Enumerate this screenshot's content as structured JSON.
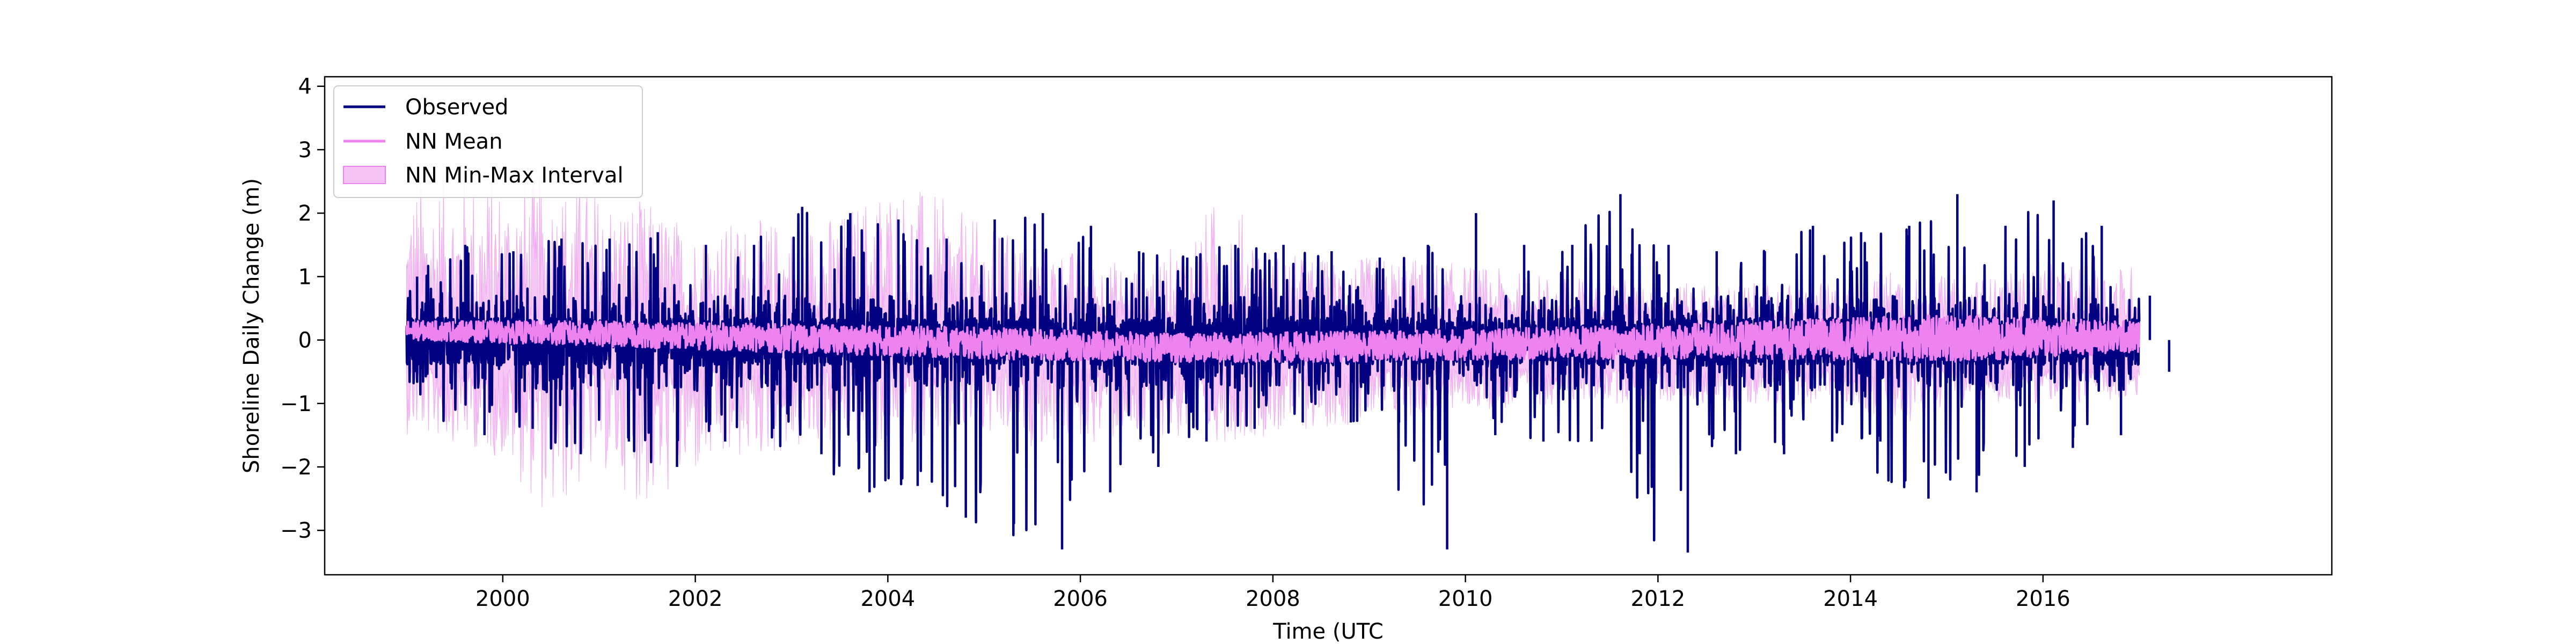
{
  "chart_data": {
    "type": "line",
    "title": "",
    "xlabel": "Time (UTC",
    "ylabel": "Shoreline Daily Change (m)",
    "xlim": [
      1998.15,
      2019.0
    ],
    "ylim": [
      -3.7,
      4.15
    ],
    "x_ticks": [
      2000,
      2002,
      2004,
      2006,
      2008,
      2010,
      2012,
      2014,
      2016
    ],
    "x_tick_labels": [
      "2000",
      "2002",
      "2004",
      "2006",
      "2008",
      "2010",
      "2012",
      "2014",
      "2016"
    ],
    "y_ticks": [
      -3,
      -2,
      -1,
      0,
      1,
      2,
      3,
      4
    ],
    "y_tick_labels": [
      "−3",
      "−2",
      "−1",
      "0",
      "1",
      "2",
      "3",
      "4"
    ],
    "grid": false,
    "legend_position": "upper-left",
    "series": [
      {
        "name": "Observed",
        "kind": "line",
        "color": "#000080",
        "x": [
          1999.0,
          1999.5,
          2000.0,
          2000.5,
          2001.0,
          2001.5,
          2002.0,
          2002.5,
          2003.0,
          2003.5,
          2004.0,
          2004.5,
          2005.0,
          2005.5,
          2006.0,
          2006.5,
          2007.0,
          2007.5,
          2008.0,
          2008.5,
          2009.0,
          2009.5,
          2010.0,
          2010.5,
          2011.0,
          2011.5,
          2012.0,
          2012.5,
          2013.0,
          2013.5,
          2014.0,
          2014.5,
          2015.0,
          2015.5,
          2016.0,
          2016.5,
          2017.0
        ],
        "y_max": [
          1.0,
          1.5,
          1.4,
          1.6,
          1.6,
          1.7,
          1.5,
          1.5,
          2.1,
          2.0,
          1.9,
          1.6,
          1.9,
          2.0,
          1.8,
          1.4,
          1.3,
          1.5,
          1.5,
          1.4,
          1.3,
          1.5,
          2.0,
          1.5,
          1.5,
          2.3,
          1.5,
          1.4,
          1.4,
          1.8,
          1.7,
          1.8,
          2.3,
          1.8,
          2.2,
          1.8,
          0.7
        ],
        "y_min": [
          -0.6,
          -1.5,
          -1.4,
          -1.8,
          -1.6,
          -2.0,
          -1.6,
          -1.4,
          -1.8,
          -2.4,
          -2.3,
          -2.8,
          -2.9,
          -3.3,
          -2.4,
          -2.0,
          -1.6,
          -1.4,
          -1.3,
          -1.3,
          -1.3,
          -3.3,
          -1.5,
          -1.6,
          -1.6,
          -1.8,
          -3.35,
          -1.8,
          -1.8,
          -1.6,
          -1.6,
          -2.5,
          -2.4,
          -2.0,
          -1.7,
          -1.5,
          -0.5
        ]
      },
      {
        "name": "NN Mean",
        "kind": "line",
        "color": "#ee82ee",
        "x": [
          1999.0,
          2001.0,
          2003.0,
          2005.0,
          2007.0,
          2009.0,
          2011.0,
          2013.0,
          2015.0,
          2017.0
        ],
        "y_max": [
          0.3,
          0.3,
          0.25,
          0.2,
          0.1,
          0.15,
          0.2,
          0.3,
          0.4,
          0.3
        ],
        "y_min": [
          0.0,
          -0.1,
          -0.2,
          -0.3,
          -0.35,
          -0.35,
          -0.3,
          -0.3,
          -0.35,
          -0.2
        ]
      },
      {
        "name": "NN Min-Max Interval",
        "kind": "band",
        "color": "#f5c4f5",
        "x": [
          1999.0,
          1999.5,
          2000.0,
          2000.5,
          2001.0,
          2001.5,
          2002.0,
          2002.5,
          2003.0,
          2003.5,
          2004.0,
          2004.5,
          2005.0,
          2005.5,
          2006.0,
          2006.5,
          2007.0,
          2007.5,
          2008.0,
          2008.5,
          2009.0,
          2009.5,
          2010.0,
          2010.5,
          2011.0,
          2011.5,
          2012.0,
          2012.5,
          2013.0,
          2013.5,
          2014.0,
          2014.5,
          2015.0,
          2015.5,
          2016.0,
          2016.5,
          2017.0
        ],
        "upper": [
          2.5,
          2.7,
          2.6,
          2.6,
          2.4,
          2.2,
          1.8,
          1.9,
          1.9,
          2.0,
          2.6,
          2.3,
          1.8,
          1.6,
          1.4,
          1.2,
          1.5,
          2.4,
          1.4,
          1.3,
          1.3,
          1.3,
          1.2,
          1.1,
          1.0,
          1.0,
          0.9,
          0.9,
          0.9,
          0.9,
          0.9,
          1.2,
          1.0,
          1.0,
          1.2,
          1.2,
          1.2
        ],
        "lower": [
          -1.5,
          -1.6,
          -1.9,
          -2.9,
          -2.0,
          -2.7,
          -2.2,
          -1.9,
          -1.8,
          -1.7,
          -1.7,
          -1.6,
          -1.6,
          -1.7,
          -1.6,
          -1.7,
          -1.6,
          -1.6,
          -1.5,
          -1.4,
          -1.3,
          -1.2,
          -1.1,
          -1.1,
          -1.0,
          -1.0,
          -1.0,
          -1.0,
          -1.0,
          -1.0,
          -1.0,
          -1.5,
          -1.0,
          -1.0,
          -1.0,
          -1.0,
          -1.0
        ]
      }
    ]
  }
}
